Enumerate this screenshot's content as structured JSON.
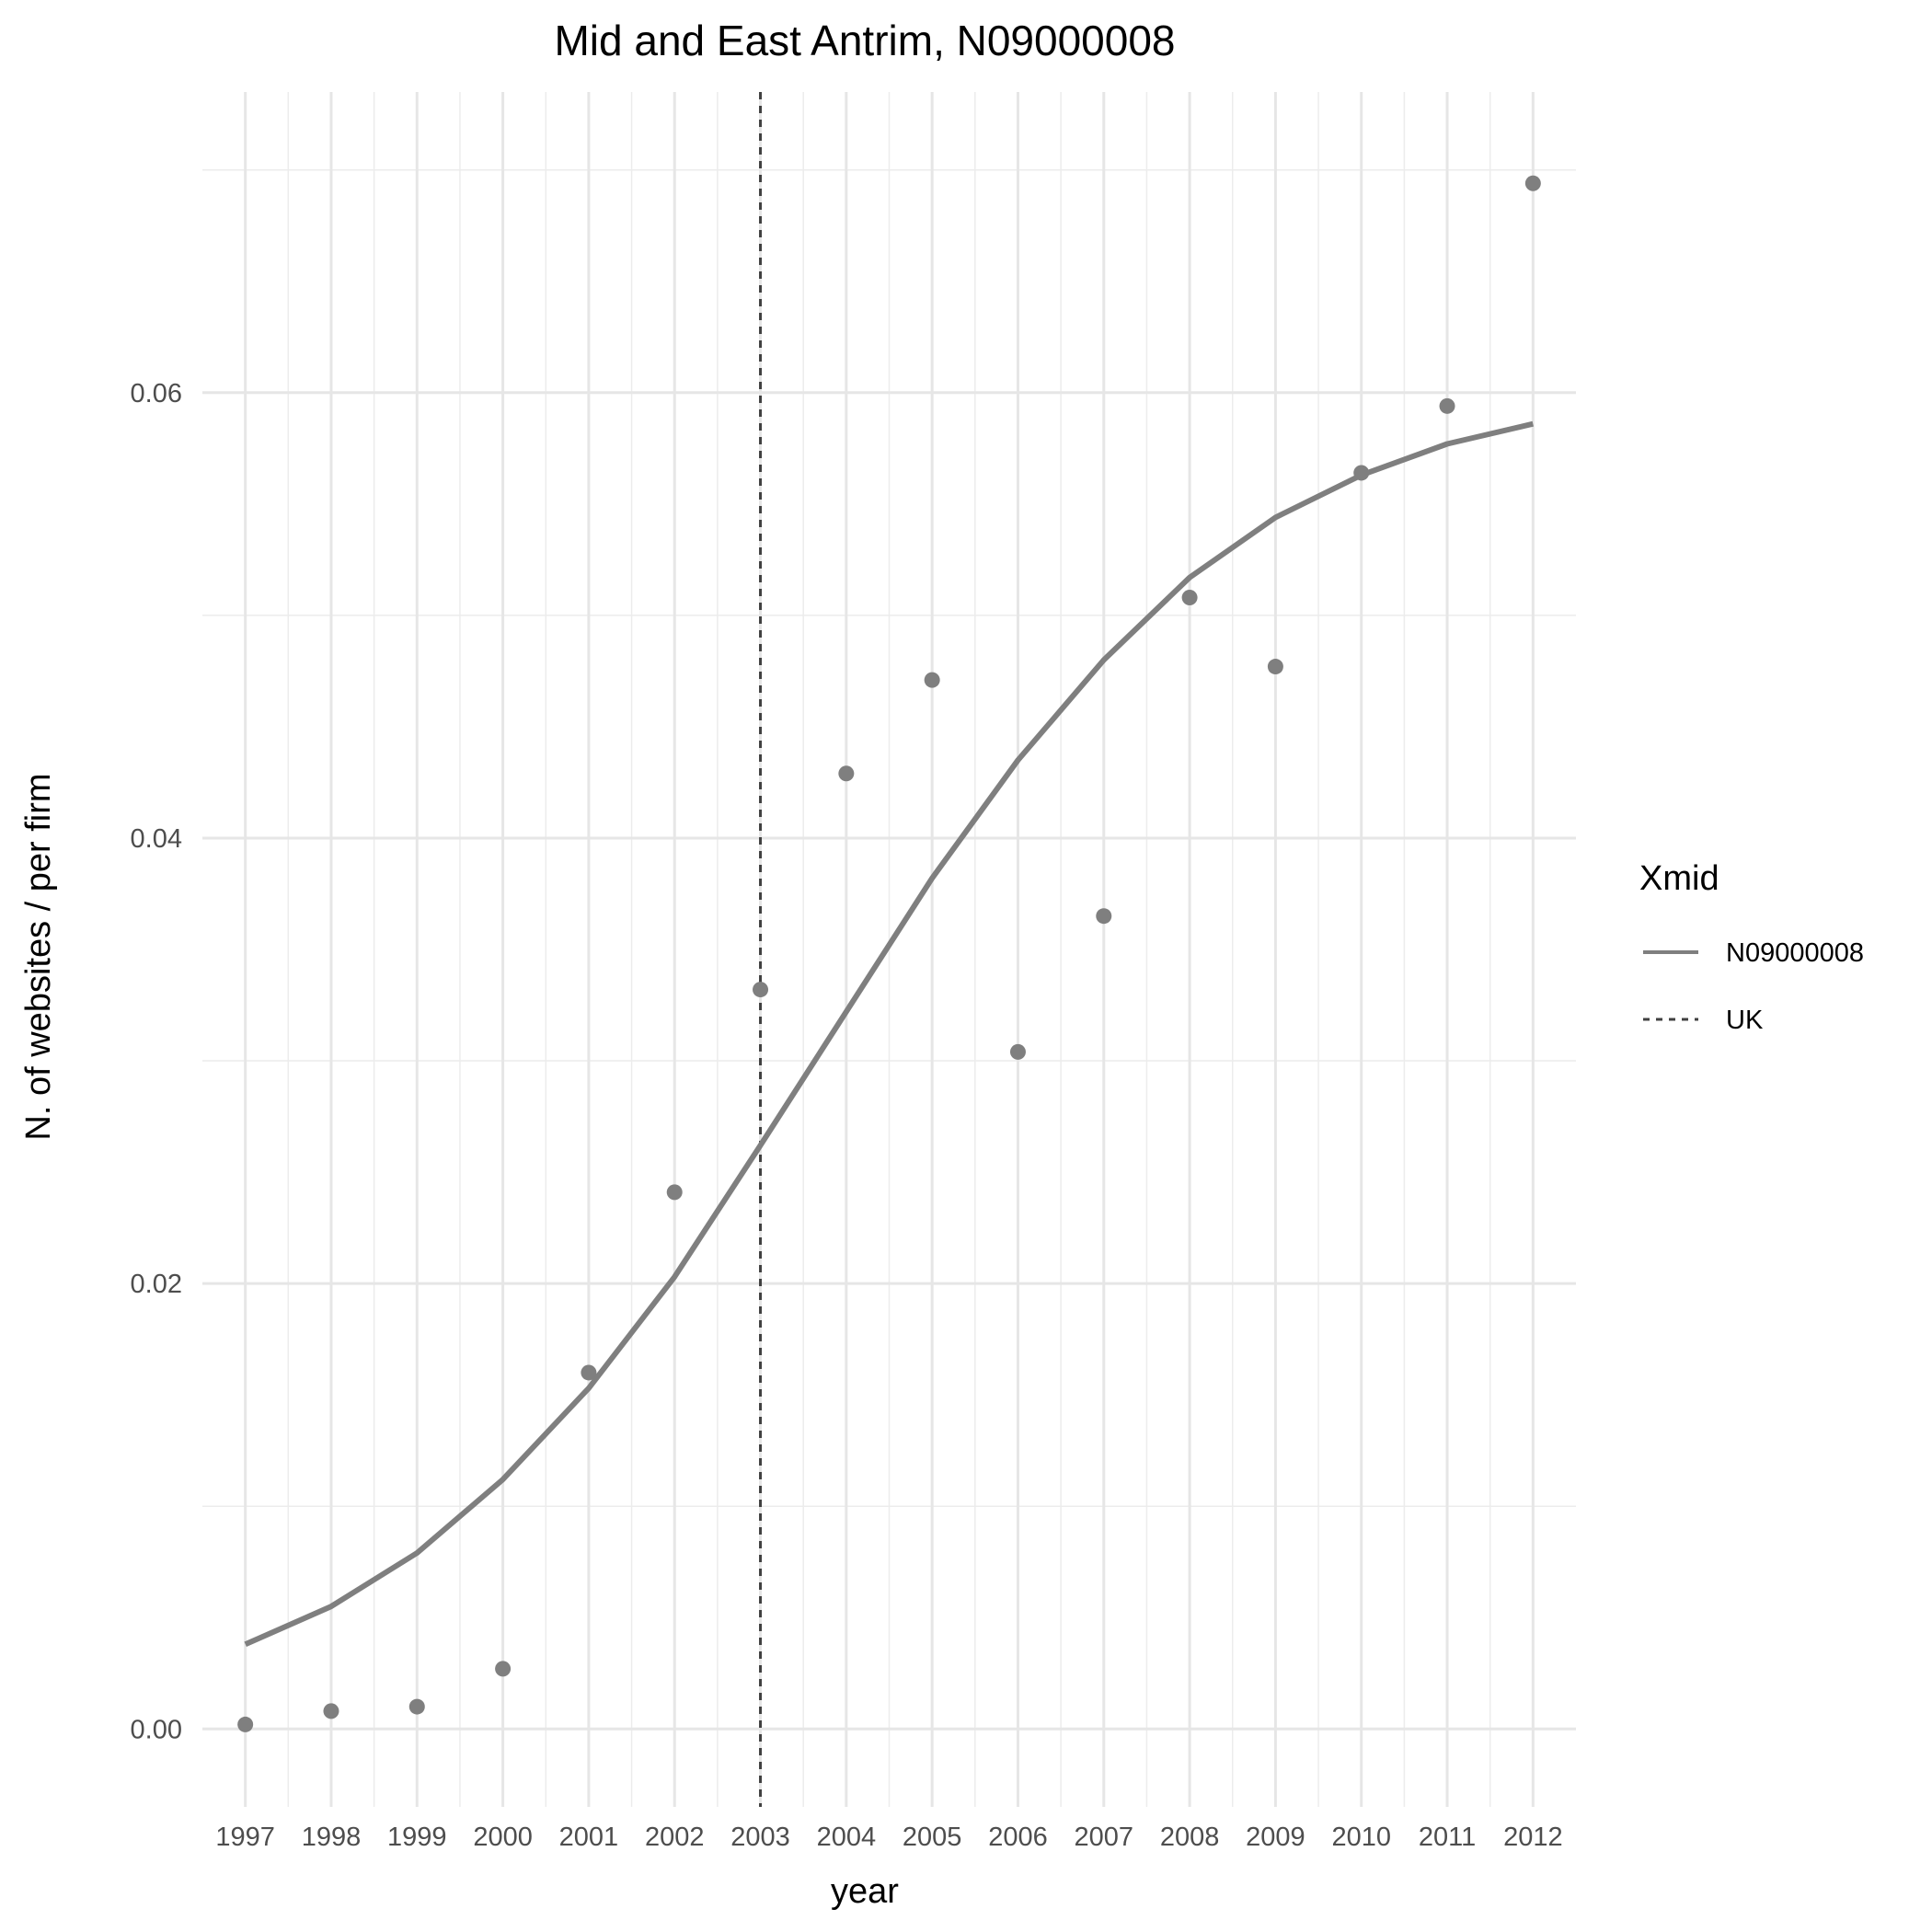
{
  "chart_data": {
    "type": "line",
    "title": "Mid and East Antrim, N09000008",
    "xlabel": "year",
    "ylabel": "N. of websites / per firm",
    "x": [
      1997,
      1998,
      1999,
      2000,
      2001,
      2002,
      2003,
      2004,
      2005,
      2006,
      2007,
      2008,
      2009,
      2010,
      2011,
      2012
    ],
    "x_tick_labels": [
      "1997",
      "1998",
      "1999",
      "2000",
      "2001",
      "2002",
      "2003",
      "2004",
      "2005",
      "2006",
      "2007",
      "2008",
      "2009",
      "2010",
      "2011",
      "2012"
    ],
    "y_ticks": [
      0.0,
      0.02,
      0.04,
      0.06
    ],
    "y_tick_labels": [
      "0.00",
      "0.02",
      "0.04",
      "0.06"
    ],
    "ylim": [
      -0.0035,
      0.0735
    ],
    "xlim": [
      1996.5,
      2012.5
    ],
    "grid": true,
    "points": {
      "color": "#7f7f7f",
      "values": [
        0.0002,
        0.0008,
        0.001,
        0.0027,
        0.016,
        0.0241,
        0.0332,
        0.0429,
        0.0471,
        0.0304,
        0.0365,
        0.0508,
        0.0477,
        0.0564,
        0.0594,
        0.0694
      ]
    },
    "series": [
      {
        "name": "N09000008",
        "linetype": "solid",
        "color": "#7f7f7f",
        "values": [
          0.0038,
          0.0055,
          0.0079,
          0.0112,
          0.0153,
          0.0203,
          0.0262,
          0.0322,
          0.0382,
          0.0435,
          0.048,
          0.0517,
          0.0544,
          0.0563,
          0.0577,
          0.0586
        ]
      }
    ],
    "vline": {
      "name": "UK",
      "x": 2003,
      "linetype": "dashed",
      "color": "#404040"
    },
    "legend": {
      "title": "Xmid",
      "position": "right",
      "entries": [
        {
          "label": "N09000008",
          "linetype": "solid",
          "color": "#7f7f7f"
        },
        {
          "label": "UK",
          "linetype": "dashed",
          "color": "#404040"
        }
      ]
    }
  }
}
